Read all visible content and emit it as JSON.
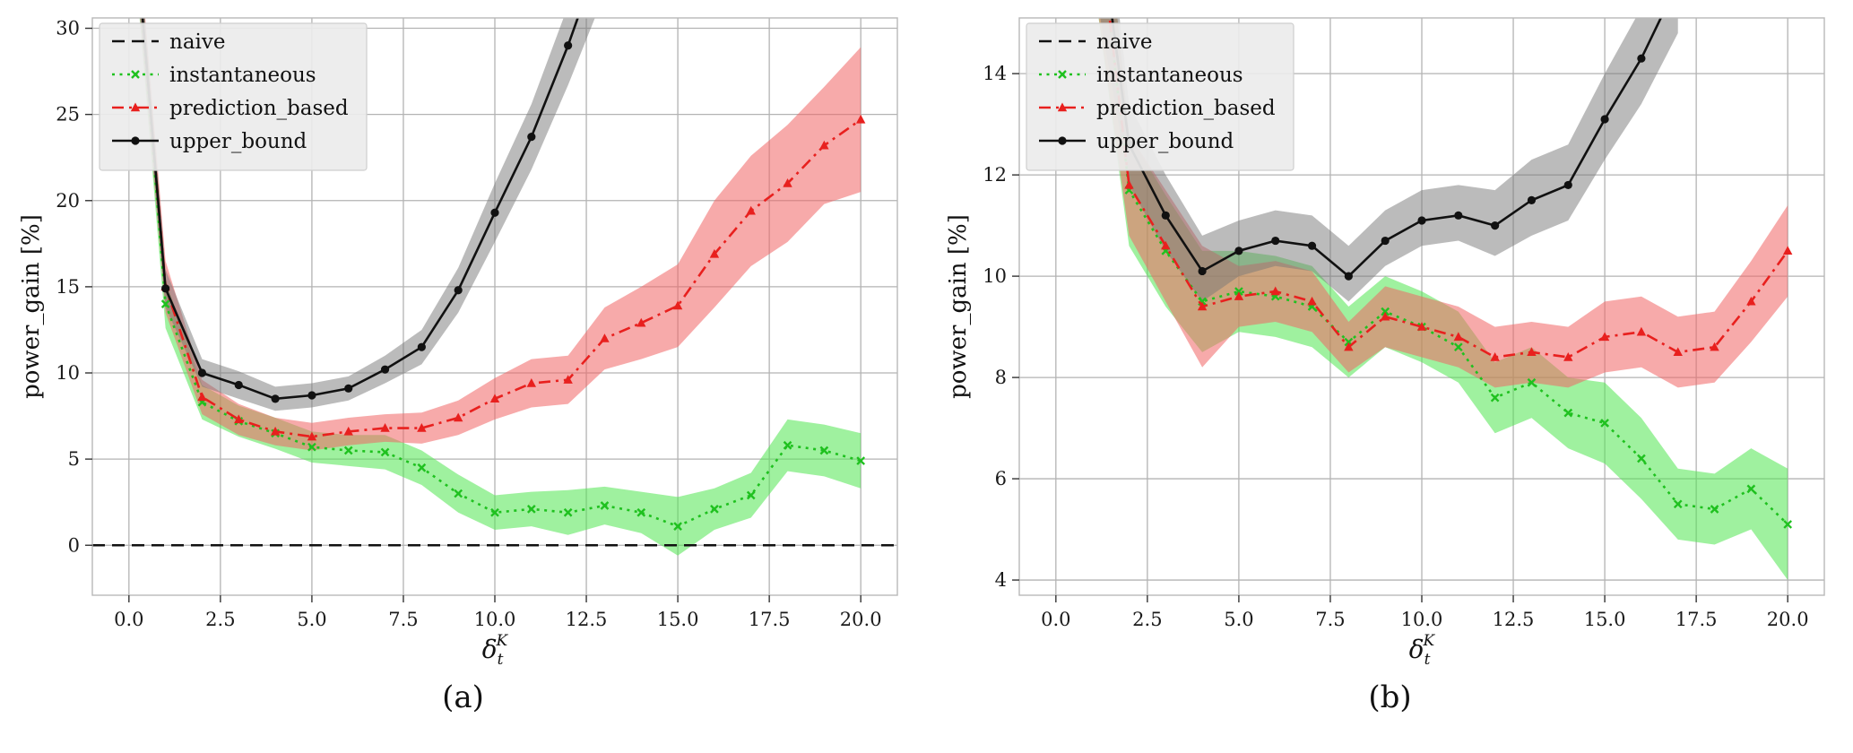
{
  "figure": {
    "caption_a": "(a)",
    "caption_b": "(b)"
  },
  "colors": {
    "naive": "#111111",
    "instantaneous": "#1fc11f",
    "prediction_based": "#e8201e",
    "upper_bound": "#111111",
    "grid": "#b3b3b3",
    "frame": "#b8b8b8",
    "legend_bg": "#ececec",
    "legend_border": "#cfcfcf"
  },
  "chart_data": [
    {
      "type": "line",
      "caption": "(a)",
      "ylabel": "power_gain [%]",
      "xlabel": {
        "base": "δ",
        "sub": "t",
        "sup": "K"
      },
      "xlim": [
        -1,
        21
      ],
      "ylim": [
        -2.9,
        30.6
      ],
      "xticks": [
        0,
        2.5,
        5,
        7.5,
        10,
        12.5,
        15,
        17.5,
        20
      ],
      "xtick_labels": [
        "0.0",
        "2.5",
        "5.0",
        "7.5",
        "10.0",
        "12.5",
        "15.0",
        "17.5",
        "20.0"
      ],
      "yticks": [
        0,
        5,
        10,
        15,
        20,
        25,
        30
      ],
      "ytick_labels": [
        "0",
        "5",
        "10",
        "15",
        "20",
        "25",
        "30"
      ],
      "legend_position": "top-left",
      "grid": true,
      "series": [
        {
          "name": "naive",
          "color": "#111111",
          "dash": "dashed",
          "marker": "none",
          "x": [
            -1,
            21
          ],
          "y": [
            0,
            0
          ]
        },
        {
          "name": "instantaneous",
          "color": "#1fc11f",
          "dash": "dotted",
          "marker": "x",
          "band_color": "rgba(80,230,80,0.55)",
          "x": [
            0,
            1,
            2,
            3,
            4,
            5,
            6,
            7,
            8,
            9,
            10,
            11,
            12,
            13,
            14,
            15,
            16,
            17,
            18,
            19,
            20
          ],
          "y": [
            40,
            14.0,
            8.3,
            7.2,
            6.5,
            5.7,
            5.5,
            5.4,
            4.5,
            3.0,
            1.9,
            2.1,
            1.9,
            2.3,
            1.9,
            1.1,
            2.1,
            2.9,
            5.8,
            5.5,
            4.9
          ],
          "lo": [
            38,
            12.6,
            7.3,
            6.3,
            5.6,
            4.8,
            4.6,
            4.4,
            3.5,
            1.9,
            0.9,
            1.1,
            0.6,
            1.2,
            0.7,
            -0.6,
            0.9,
            1.6,
            4.3,
            4.0,
            3.3
          ],
          "hi": [
            42,
            15.4,
            9.3,
            8.1,
            7.4,
            6.6,
            6.4,
            6.4,
            5.5,
            4.1,
            2.9,
            3.1,
            3.2,
            3.4,
            3.1,
            2.8,
            3.3,
            4.2,
            7.3,
            7.0,
            6.5
          ]
        },
        {
          "name": "prediction_based",
          "color": "#e8201e",
          "dash": "dashdot",
          "marker": "triangle",
          "band_color": "rgba(240,100,100,0.55)",
          "x": [
            0,
            1,
            2,
            3,
            4,
            5,
            6,
            7,
            8,
            9,
            10,
            11,
            12,
            13,
            14,
            15,
            16,
            17,
            18,
            19,
            20
          ],
          "y": [
            40,
            15.0,
            8.6,
            7.3,
            6.6,
            6.3,
            6.6,
            6.8,
            6.8,
            7.4,
            8.5,
            9.4,
            9.6,
            12.0,
            12.9,
            13.9,
            16.9,
            19.4,
            21.0,
            23.2,
            24.7
          ],
          "lo": [
            38,
            13.5,
            7.6,
            6.4,
            5.8,
            5.5,
            5.8,
            6.0,
            5.9,
            6.4,
            7.3,
            8.0,
            8.2,
            10.2,
            10.8,
            11.5,
            13.8,
            16.2,
            17.6,
            19.8,
            20.5
          ],
          "hi": [
            42,
            16.5,
            9.6,
            8.2,
            7.4,
            7.1,
            7.4,
            7.6,
            7.7,
            8.4,
            9.7,
            10.8,
            11.0,
            13.8,
            15.0,
            16.3,
            20.0,
            22.6,
            24.4,
            26.6,
            28.9
          ]
        },
        {
          "name": "upper_bound",
          "color": "#111111",
          "dash": "solid",
          "marker": "circle",
          "band_color": "rgba(120,120,120,0.5)",
          "x": [
            0,
            1,
            2,
            3,
            4,
            5,
            6,
            7,
            8,
            9,
            10,
            11,
            12,
            13
          ],
          "y": [
            40,
            14.9,
            10.0,
            9.3,
            8.5,
            8.7,
            9.1,
            10.2,
            11.5,
            14.8,
            19.3,
            23.7,
            29.0,
            35.0
          ],
          "lo": [
            38,
            13.8,
            9.2,
            8.5,
            7.8,
            8.0,
            8.4,
            9.4,
            10.5,
            13.5,
            17.6,
            21.8,
            26.7,
            32.0
          ],
          "hi": [
            42,
            16.0,
            10.8,
            10.1,
            9.2,
            9.4,
            9.8,
            11.0,
            12.5,
            16.1,
            21.0,
            25.6,
            31.3,
            38.0
          ]
        }
      ]
    },
    {
      "type": "line",
      "caption": "(b)",
      "ylabel": "power_gain [%]",
      "xlabel": {
        "base": "δ",
        "sub": "t",
        "sup": "K"
      },
      "xlim": [
        -1,
        21
      ],
      "ylim": [
        3.7,
        15.1
      ],
      "xticks": [
        0,
        2.5,
        5,
        7.5,
        10,
        12.5,
        15,
        17.5,
        20
      ],
      "xtick_labels": [
        "0.0",
        "2.5",
        "5.0",
        "7.5",
        "10.0",
        "12.5",
        "15.0",
        "17.5",
        "20.0"
      ],
      "yticks": [
        4,
        6,
        8,
        10,
        12,
        14
      ],
      "ytick_labels": [
        "4",
        "6",
        "8",
        "10",
        "12",
        "14"
      ],
      "legend_position": "top-left",
      "grid": true,
      "series": [
        {
          "name": "naive",
          "color": "#111111",
          "dash": "dashed",
          "marker": "none",
          "x": [
            -1,
            21
          ],
          "y": [
            0,
            0
          ]
        },
        {
          "name": "instantaneous",
          "color": "#1fc11f",
          "dash": "dotted",
          "marker": "x",
          "band_color": "rgba(80,230,80,0.55)",
          "x": [
            1,
            2,
            3,
            4,
            5,
            6,
            7,
            8,
            9,
            10,
            11,
            12,
            13,
            14,
            15,
            16,
            17,
            18,
            19,
            20
          ],
          "y": [
            18,
            11.7,
            10.5,
            9.5,
            9.7,
            9.6,
            9.4,
            8.7,
            9.3,
            9.0,
            8.6,
            7.6,
            7.9,
            7.3,
            7.1,
            6.4,
            5.5,
            5.4,
            5.8,
            5.1
          ],
          "lo": [
            16,
            10.6,
            9.4,
            8.5,
            8.9,
            8.8,
            8.6,
            8.0,
            8.6,
            8.3,
            7.9,
            6.9,
            7.2,
            6.6,
            6.3,
            5.6,
            4.8,
            4.7,
            5.0,
            4.0
          ],
          "hi": [
            20,
            12.8,
            11.6,
            10.5,
            10.5,
            10.4,
            10.2,
            9.4,
            10.0,
            9.7,
            9.3,
            8.3,
            8.6,
            8.0,
            7.9,
            7.2,
            6.2,
            6.1,
            6.6,
            6.2
          ]
        },
        {
          "name": "prediction_based",
          "color": "#e8201e",
          "dash": "dashdot",
          "marker": "triangle",
          "band_color": "rgba(240,100,100,0.55)",
          "x": [
            1,
            2,
            3,
            4,
            5,
            6,
            7,
            8,
            9,
            10,
            11,
            12,
            13,
            14,
            15,
            16,
            17,
            18,
            19,
            20
          ],
          "y": [
            18,
            11.8,
            10.6,
            9.4,
            9.6,
            9.7,
            9.5,
            8.6,
            9.2,
            9.0,
            8.8,
            8.4,
            8.5,
            8.4,
            8.8,
            8.9,
            8.5,
            8.6,
            9.5,
            10.5
          ],
          "lo": [
            16,
            10.8,
            9.5,
            8.2,
            9.0,
            9.1,
            8.9,
            8.1,
            8.6,
            8.4,
            8.2,
            7.8,
            7.9,
            7.8,
            8.1,
            8.2,
            7.8,
            7.9,
            8.7,
            9.6
          ],
          "hi": [
            20,
            12.8,
            11.7,
            10.6,
            10.2,
            10.3,
            10.1,
            9.1,
            9.8,
            9.6,
            9.4,
            9.0,
            9.1,
            9.0,
            9.5,
            9.6,
            9.2,
            9.3,
            10.3,
            11.4
          ]
        },
        {
          "name": "upper_bound",
          "color": "#111111",
          "dash": "solid",
          "marker": "circle",
          "band_color": "rgba(120,120,120,0.5)",
          "x": [
            1,
            2,
            3,
            4,
            5,
            6,
            7,
            8,
            9,
            10,
            11,
            12,
            13,
            14,
            15,
            16,
            17
          ],
          "y": [
            18,
            12.6,
            11.2,
            10.1,
            10.5,
            10.7,
            10.6,
            10.0,
            10.7,
            11.1,
            11.2,
            11.0,
            11.5,
            11.8,
            13.1,
            14.3,
            15.8
          ],
          "lo": [
            16,
            11.8,
            10.5,
            9.5,
            10.0,
            10.2,
            10.1,
            9.5,
            10.2,
            10.6,
            10.7,
            10.4,
            10.8,
            11.1,
            12.3,
            13.4,
            14.8
          ],
          "hi": [
            20,
            13.4,
            12.0,
            10.8,
            11.1,
            11.3,
            11.2,
            10.6,
            11.3,
            11.7,
            11.8,
            11.7,
            12.3,
            12.6,
            14.0,
            15.3,
            16.8
          ]
        }
      ]
    }
  ]
}
